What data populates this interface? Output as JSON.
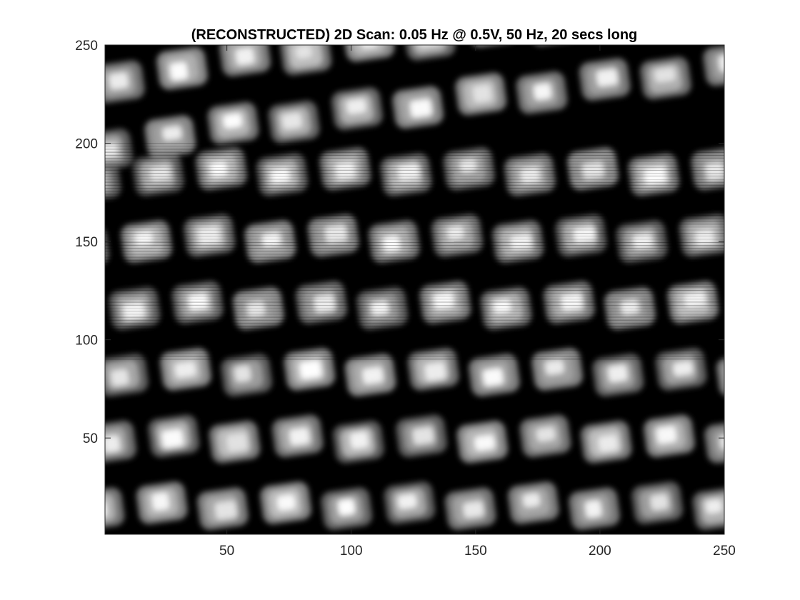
{
  "chart_data": {
    "type": "heatmap",
    "title": "(RECONSTRUCTED) 2D Scan: 0.05 Hz @ 0.5V, 50 Hz, 20 secs long",
    "xlabel": "",
    "ylabel": "",
    "xlim": [
      1,
      250
    ],
    "ylim": [
      1,
      250
    ],
    "y_direction": "normal",
    "colormap": "gray",
    "x_ticks": [
      50,
      100,
      150,
      200,
      250
    ],
    "y_ticks": [
      50,
      100,
      150,
      200,
      250
    ],
    "grid": false,
    "pattern": {
      "columns": 10,
      "column_tilt_deg": 8,
      "row_spacing": 34,
      "upper_row_tilt_deg": 14,
      "upper_band_y": 195,
      "scanline_noise_region": [
        90,
        200
      ]
    }
  }
}
